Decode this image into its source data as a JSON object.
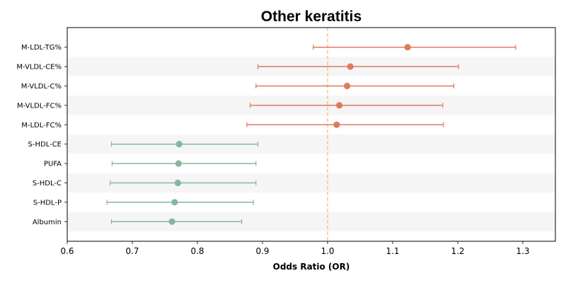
{
  "chart_data": {
    "type": "forest",
    "title": "Other keratitis",
    "xlabel": "Odds Ratio (OR)",
    "ylabel": "",
    "xlim": [
      0.6,
      1.35
    ],
    "xticks": [
      "0.6",
      "0.7",
      "0.8",
      "0.9",
      "1.0",
      "1.1",
      "1.2",
      "1.3"
    ],
    "reference_line": 1.0,
    "reference_line_color": "#f5c77e",
    "grid": false,
    "row_shading": "alternating",
    "colors": {
      "risk": "#dd7a5f",
      "protective": "#84b79c",
      "stripe": "#f5f5f5"
    },
    "rows": [
      {
        "label": "M-LDL-TG%",
        "or": 1.123,
        "lower": 0.978,
        "upper": 1.289,
        "group": "risk"
      },
      {
        "label": "M-VLDL-CE%",
        "or": 1.035,
        "lower": 0.893,
        "upper": 1.201,
        "group": "risk"
      },
      {
        "label": "M-VLDL-C%",
        "or": 1.03,
        "lower": 0.89,
        "upper": 1.194,
        "group": "risk"
      },
      {
        "label": "M-VLDL-FC%",
        "or": 1.018,
        "lower": 0.881,
        "upper": 1.177,
        "group": "risk"
      },
      {
        "label": "M-LDL-FC%",
        "or": 1.014,
        "lower": 0.876,
        "upper": 1.178,
        "group": "risk"
      },
      {
        "label": "S-HDL-CE",
        "or": 0.772,
        "lower": 0.668,
        "upper": 0.893,
        "group": "protective"
      },
      {
        "label": "PUFA",
        "or": 0.771,
        "lower": 0.669,
        "upper": 0.89,
        "group": "protective"
      },
      {
        "label": "S-HDL-C",
        "or": 0.77,
        "lower": 0.666,
        "upper": 0.89,
        "group": "protective"
      },
      {
        "label": "S-HDL-P",
        "or": 0.765,
        "lower": 0.661,
        "upper": 0.886,
        "group": "protective"
      },
      {
        "label": "Albumin",
        "or": 0.761,
        "lower": 0.668,
        "upper": 0.868,
        "group": "protective"
      }
    ]
  }
}
